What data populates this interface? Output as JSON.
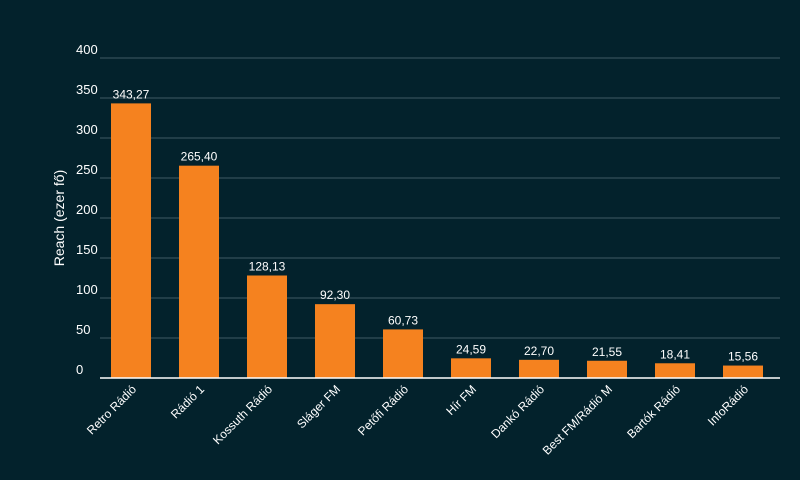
{
  "chart_data": {
    "type": "bar",
    "categories": [
      "Retro Rádió",
      "Rádió 1",
      "Kossuth Rádió",
      "Sláger FM",
      "Petőfi Rádió",
      "Hír FM",
      "Dankó Rádió",
      "Best FM/Rádió M",
      "Bartók Rádió",
      "InfoRádió"
    ],
    "values": [
      343.27,
      265.4,
      128.13,
      92.3,
      60.73,
      24.59,
      22.7,
      21.55,
      18.41,
      15.56
    ],
    "value_labels": [
      "343,27",
      "265,40",
      "128,13",
      "92,30",
      "60,73",
      "24,59",
      "22,70",
      "21,55",
      "18,41",
      "15,56"
    ],
    "ylabel": "Reach (ezer fő)",
    "xlabel": "",
    "ylim": [
      0,
      400
    ],
    "yticks": [
      "0",
      "50",
      "100",
      "150",
      "200",
      "250",
      "300",
      "350",
      "400"
    ],
    "grid": true,
    "colors": {
      "bar": "#f5821f",
      "background": "#03222c",
      "grid": "#3f5a63",
      "text": "#ffffff"
    }
  }
}
